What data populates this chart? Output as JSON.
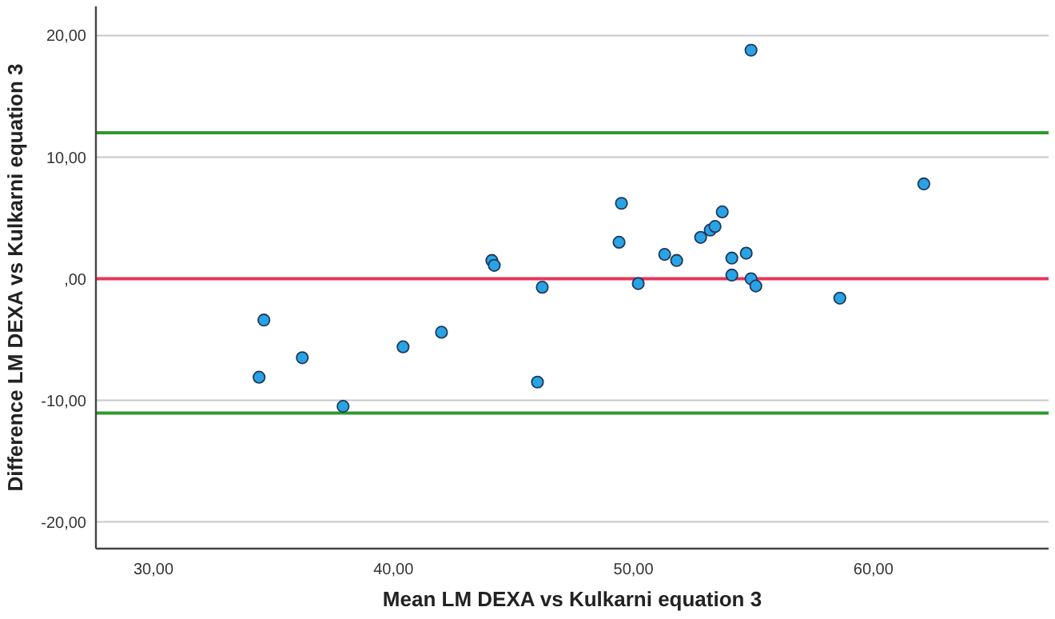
{
  "chart_data": {
    "type": "scatter",
    "xlabel": "Mean LM DEXA vs Kulkarni equation 3",
    "ylabel": "Difference LM DEXA vs Kulkarni equation 3",
    "x": [
      34.6,
      34.4,
      36.2,
      37.9,
      40.4,
      42.0,
      44.1,
      44.2,
      46.2,
      46.0,
      49.5,
      49.4,
      50.2,
      51.3,
      51.8,
      52.8,
      53.2,
      53.4,
      53.7,
      54.1,
      54.1,
      54.7,
      54.9,
      55.1,
      54.9,
      58.6,
      62.1
    ],
    "values": [
      -3.4,
      -8.1,
      -6.5,
      -10.5,
      -5.6,
      -4.4,
      1.5,
      1.1,
      -0.7,
      -8.5,
      6.2,
      3.0,
      -0.4,
      2.0,
      1.5,
      3.4,
      4.0,
      4.3,
      5.5,
      0.3,
      1.7,
      2.1,
      0.0,
      -0.6,
      18.8,
      -1.6,
      7.8
    ],
    "color": "#29a3e6",
    "marker": "circle",
    "xlim": [
      27.6,
      67.3
    ],
    "ylim": [
      -22.2,
      22.4
    ],
    "xticks": [
      {
        "value": 30,
        "label": "30,00"
      },
      {
        "value": 40,
        "label": "40,00"
      },
      {
        "value": 50,
        "label": "50,00"
      },
      {
        "value": 60,
        "label": "60,00"
      }
    ],
    "yticks": [
      {
        "value": -20,
        "label": "-20,00"
      },
      {
        "value": -10,
        "label": "-10,00"
      },
      {
        "value": 0,
        "label": ",00"
      },
      {
        "value": 10,
        "label": "10,00"
      },
      {
        "value": 20,
        "label": "20,00"
      }
    ],
    "grid": "y",
    "ref_lines": [
      {
        "axis": "y",
        "value": 12.0,
        "color": "#2e9a2e"
      },
      {
        "axis": "y",
        "value": 0,
        "color": "#e8345a"
      },
      {
        "axis": "y",
        "value": -11.05,
        "color": "#2e9a2e"
      }
    ]
  }
}
